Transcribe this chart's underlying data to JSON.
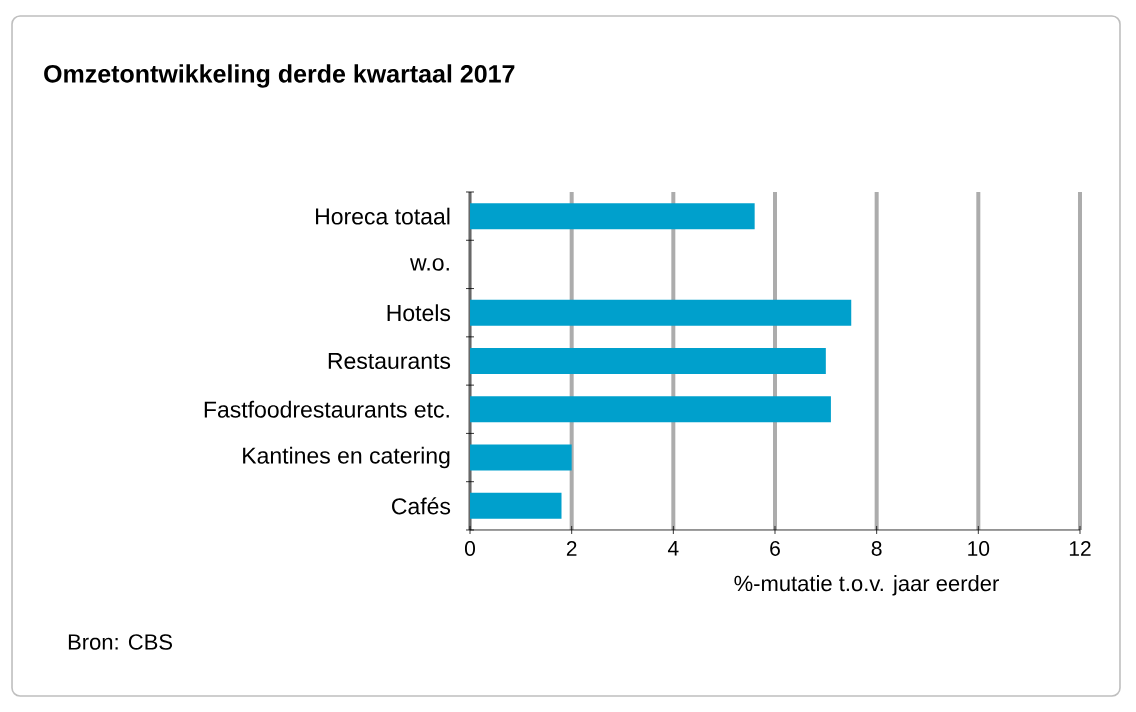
{
  "chart_data": {
    "type": "bar",
    "orientation": "horizontal",
    "title": "Omzetontwikkeling derde kwartaal 2017",
    "categories": [
      "Horeca totaal",
      "w.o.",
      "Hotels",
      "Restaurants",
      "Fastfoodrestaurants etc.",
      "Kantines en catering",
      "Cafés"
    ],
    "values": [
      5.6,
      null,
      7.5,
      7.0,
      7.1,
      2.0,
      1.8
    ],
    "color": "#00a0cc",
    "xlim": [
      0,
      12
    ],
    "xticks": [
      0,
      2,
      4,
      6,
      8,
      10,
      12
    ],
    "grid": "x",
    "xlabel": "%-mutatie t.o.v. jaar eerder",
    "annotations": [
      "Bron: CBS"
    ]
  }
}
